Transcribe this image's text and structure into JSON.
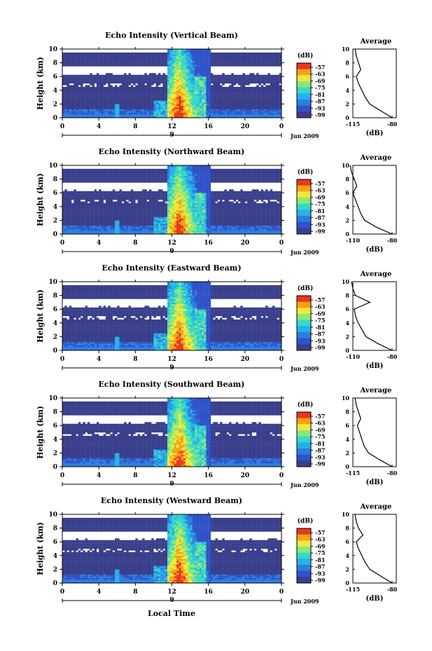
{
  "figure": {
    "xlabel": "Local Time",
    "panels": [
      {
        "title": "Echo Intensity (Vertical Beam)",
        "avg_xticks": [
          "-115",
          "-80"
        ]
      },
      {
        "title": "Echo Intensity (Northward Beam)",
        "avg_xticks": [
          "-110",
          "-80"
        ]
      },
      {
        "title": "Echo Intensity (Eastward Beam)",
        "avg_xticks": [
          "-110",
          "-80"
        ]
      },
      {
        "title": "Echo Intensity (Southward Beam)",
        "avg_xticks": [
          "-115",
          "-80"
        ]
      },
      {
        "title": "Echo Intensity (Westward Beam)",
        "avg_xticks": [
          "-115",
          "-80"
        ]
      }
    ],
    "ylabel": "Height (km)",
    "yticks": [
      "0",
      "2",
      "4",
      "6",
      "8",
      "10"
    ],
    "xticks": [
      "0",
      "4",
      "8",
      "12",
      "16",
      "20",
      "0"
    ],
    "date_day": "9",
    "date_label": "Jun 2009",
    "colorbar_unit": "(dB)",
    "colorbar_ticks": [
      "-57",
      "-63",
      "-69",
      "-75",
      "-81",
      "-87",
      "-93",
      "-99"
    ],
    "avg_title": "Average",
    "avg_xlabel": "(dB)"
  },
  "colors": {
    "background_echo": "#3a3f8c",
    "colormap": [
      "#3a3f8c",
      "#2f52c8",
      "#2a7ee0",
      "#28b0e8",
      "#36d8c8",
      "#8ae878",
      "#f0e838",
      "#f4a21a",
      "#e83818"
    ]
  },
  "chart_data": {
    "type": "heatmap",
    "x_axis": "Local Time (h)",
    "xlim": [
      0,
      24
    ],
    "y_axis": "Height (km)",
    "ylim": [
      0,
      10
    ],
    "color_range_db": [
      -99,
      -57
    ],
    "convective_event_hours": [
      11.5,
      16
    ],
    "peak_hour": 12.8,
    "average_profile_heights_km": [
      0,
      1,
      2,
      3,
      4,
      5,
      6,
      7,
      8,
      9,
      10
    ],
    "series": [
      {
        "name": "Vertical Beam",
        "avg_profile_db": [
          -80,
          -90,
          -100,
          -104,
          -107,
          -110,
          -112,
          -108,
          -110,
          -112,
          -113
        ]
      },
      {
        "name": "Northward Beam",
        "avg_profile_db": [
          -80,
          -92,
          -101,
          -104,
          -106,
          -108,
          -110,
          -107,
          -109,
          -111,
          -112
        ]
      },
      {
        "name": "Eastward Beam",
        "avg_profile_db": [
          -80,
          -91,
          -100,
          -103,
          -106,
          -108,
          -109,
          -97,
          -108,
          -110,
          -111
        ]
      },
      {
        "name": "Southward Beam",
        "avg_profile_db": [
          -80,
          -91,
          -101,
          -105,
          -107,
          -109,
          -111,
          -108,
          -110,
          -112,
          -113
        ]
      },
      {
        "name": "Westward Beam",
        "avg_profile_db": [
          -80,
          -90,
          -100,
          -104,
          -107,
          -110,
          -112,
          -106,
          -110,
          -112,
          -113
        ]
      }
    ]
  }
}
